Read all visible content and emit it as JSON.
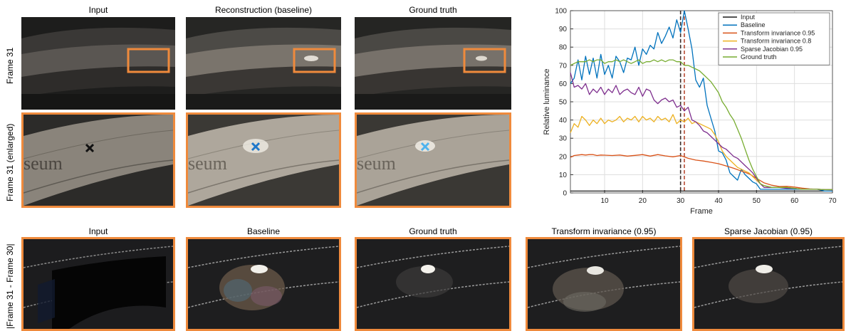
{
  "colors": {
    "highlight_border": "#ef8a3c",
    "marker_input": "#111111",
    "marker_baseline": "#1f77c9",
    "marker_ground_truth": "#4fb3ee"
  },
  "top_panels": {
    "titles": [
      "Input",
      "Reconstruction (baseline)",
      "Ground truth"
    ],
    "row_labels": [
      "Frame 31",
      "Frame 31 (enlarged)"
    ],
    "facade_text": "seum"
  },
  "bottom_panels": {
    "titles": [
      "Input",
      "Baseline",
      "Ground truth",
      "Transform invariance (0.95)",
      "Sparse Jacobian (0.95)"
    ],
    "row_label": "|Frame 31 - Frame 30|"
  },
  "chart_data": {
    "type": "line",
    "xlabel": "Frame",
    "ylabel": "Relative luminance",
    "xlim": [
      1,
      70
    ],
    "ylim": [
      0,
      100
    ],
    "xticks": [
      10,
      20,
      30,
      40,
      50,
      60,
      70
    ],
    "yticks": [
      0,
      10,
      20,
      30,
      40,
      50,
      60,
      70,
      80,
      90,
      100
    ],
    "grid": true,
    "legend_position": "top-right",
    "markers": [
      {
        "x": 30,
        "color": "#3b2e2a"
      },
      {
        "x": 31,
        "color": "#b84b33"
      }
    ],
    "series": [
      {
        "name": "Input",
        "color": "#1a1a1a",
        "x": [
          1,
          70
        ],
        "y": [
          1,
          1
        ]
      },
      {
        "name": "Baseline",
        "color": "#0072bd",
        "x": [
          1,
          2,
          3,
          4,
          5,
          6,
          7,
          8,
          9,
          10,
          11,
          12,
          13,
          14,
          15,
          16,
          17,
          18,
          19,
          20,
          21,
          22,
          23,
          24,
          25,
          26,
          27,
          28,
          29,
          30,
          31,
          32,
          33,
          34,
          35,
          36,
          37,
          38,
          39,
          40,
          41,
          42,
          43,
          44,
          45,
          46,
          47,
          48,
          49,
          50,
          51,
          52,
          53,
          54,
          55,
          56,
          57,
          58,
          59,
          60,
          62,
          64,
          66,
          68,
          70
        ],
        "y": [
          60,
          63,
          73,
          62,
          75,
          65,
          74,
          63,
          76,
          65,
          70,
          63,
          75,
          72,
          66,
          74,
          73,
          80,
          70,
          79,
          76,
          81,
          79,
          88,
          82,
          86,
          91,
          85,
          95,
          88,
          100,
          90,
          79,
          62,
          58,
          63,
          48,
          41,
          34,
          23,
          22,
          18,
          11,
          9,
          7,
          13,
          10,
          8,
          6,
          5,
          2,
          2,
          2,
          2,
          2,
          2,
          2,
          2,
          2,
          2,
          2,
          2,
          2,
          1,
          1
        ]
      },
      {
        "name": "Transform invariance 0.95",
        "color": "#d95319",
        "x": [
          1,
          2,
          3,
          4,
          5,
          6,
          7,
          8,
          9,
          10,
          12,
          14,
          16,
          18,
          20,
          22,
          24,
          26,
          28,
          30,
          32,
          34,
          36,
          38,
          40,
          42,
          44,
          46,
          48,
          50,
          52,
          54,
          56,
          58,
          60,
          62,
          64,
          66,
          68,
          70
        ],
        "y": [
          19.5,
          20.5,
          20.8,
          21,
          20.8,
          21,
          21,
          20.5,
          20.8,
          20.7,
          20.5,
          20.8,
          20.2,
          20.6,
          21,
          20.2,
          21,
          20.3,
          19.8,
          20.5,
          19,
          18,
          17.5,
          16.8,
          16,
          14.8,
          13.5,
          12,
          10.5,
          8,
          5.5,
          4.2,
          3.5,
          3.6,
          3.2,
          2.6,
          2.2,
          2,
          1.8,
          1.7
        ]
      },
      {
        "name": "Transform invariance 0.8",
        "color": "#edb120",
        "x": [
          1,
          2,
          3,
          4,
          5,
          6,
          7,
          8,
          9,
          10,
          11,
          12,
          13,
          14,
          15,
          16,
          17,
          18,
          19,
          20,
          21,
          22,
          23,
          24,
          25,
          26,
          27,
          28,
          29,
          30,
          31,
          32,
          33,
          34,
          35,
          36,
          37,
          38,
          39,
          40,
          41,
          42,
          43,
          44,
          45,
          46,
          47,
          48,
          49,
          50,
          51,
          52,
          54,
          56,
          58,
          60,
          62,
          64,
          66,
          68,
          70
        ],
        "y": [
          33,
          38,
          36,
          42,
          40,
          37,
          40,
          38,
          41,
          38,
          40,
          39,
          40,
          42,
          39,
          41,
          40,
          42,
          39,
          42,
          40,
          41,
          39,
          42,
          40,
          41,
          39,
          43,
          38,
          40,
          39,
          41,
          38,
          39,
          38,
          37,
          36,
          35,
          32,
          28,
          23,
          20,
          18,
          16,
          14,
          13,
          12,
          11,
          9,
          7,
          5,
          4,
          3,
          3,
          3,
          2.5,
          2,
          2,
          2,
          1.8,
          1.8
        ]
      },
      {
        "name": "Sparse Jacobian 0.95",
        "color": "#7e2f8e",
        "x": [
          1,
          2,
          3,
          4,
          5,
          6,
          7,
          8,
          9,
          10,
          11,
          12,
          13,
          14,
          15,
          16,
          17,
          18,
          19,
          20,
          21,
          22,
          23,
          24,
          25,
          26,
          27,
          28,
          29,
          30,
          31,
          32,
          33,
          34,
          35,
          36,
          37,
          38,
          39,
          40,
          41,
          42,
          43,
          44,
          45,
          46,
          47,
          48,
          49,
          50,
          51,
          52,
          54,
          56,
          58,
          60,
          62,
          64,
          66,
          68,
          70
        ],
        "y": [
          66,
          58,
          59,
          57,
          60,
          54,
          57,
          55,
          58,
          54,
          57,
          55,
          59,
          54,
          56,
          57,
          55,
          54,
          58,
          53,
          57,
          56,
          51,
          49,
          51,
          52,
          50,
          51,
          47,
          48,
          45,
          47,
          40,
          39,
          37,
          34,
          33,
          31,
          29,
          27,
          25,
          24,
          22,
          20,
          19,
          17,
          15,
          13,
          11,
          8,
          5,
          3,
          3,
          3,
          2.5,
          2.5,
          2,
          2,
          2,
          1.8,
          1.8
        ]
      },
      {
        "name": "Ground truth",
        "color": "#77ac30",
        "x": [
          1,
          2,
          3,
          4,
          5,
          6,
          7,
          8,
          9,
          10,
          11,
          12,
          13,
          14,
          15,
          16,
          17,
          18,
          19,
          20,
          21,
          22,
          23,
          24,
          25,
          26,
          27,
          28,
          29,
          30,
          31,
          32,
          33,
          34,
          35,
          36,
          37,
          38,
          39,
          40,
          41,
          42,
          43,
          44,
          45,
          46,
          47,
          48,
          49,
          50,
          51,
          52,
          54,
          56,
          58,
          60,
          62,
          64,
          66,
          68,
          70
        ],
        "y": [
          70,
          71,
          72,
          72,
          72,
          73,
          72,
          73,
          73,
          71,
          72,
          72,
          73,
          72,
          73,
          72,
          71,
          72,
          73,
          71,
          72,
          72,
          73,
          72,
          73,
          72,
          73,
          73,
          72,
          72,
          70,
          70,
          69,
          68,
          67,
          65,
          63,
          61,
          58,
          55,
          50,
          47,
          43,
          40,
          35,
          30,
          24,
          18,
          13,
          9,
          5,
          4,
          3,
          3,
          3,
          2.5,
          2,
          2,
          2,
          1.8,
          1.8
        ]
      }
    ]
  }
}
